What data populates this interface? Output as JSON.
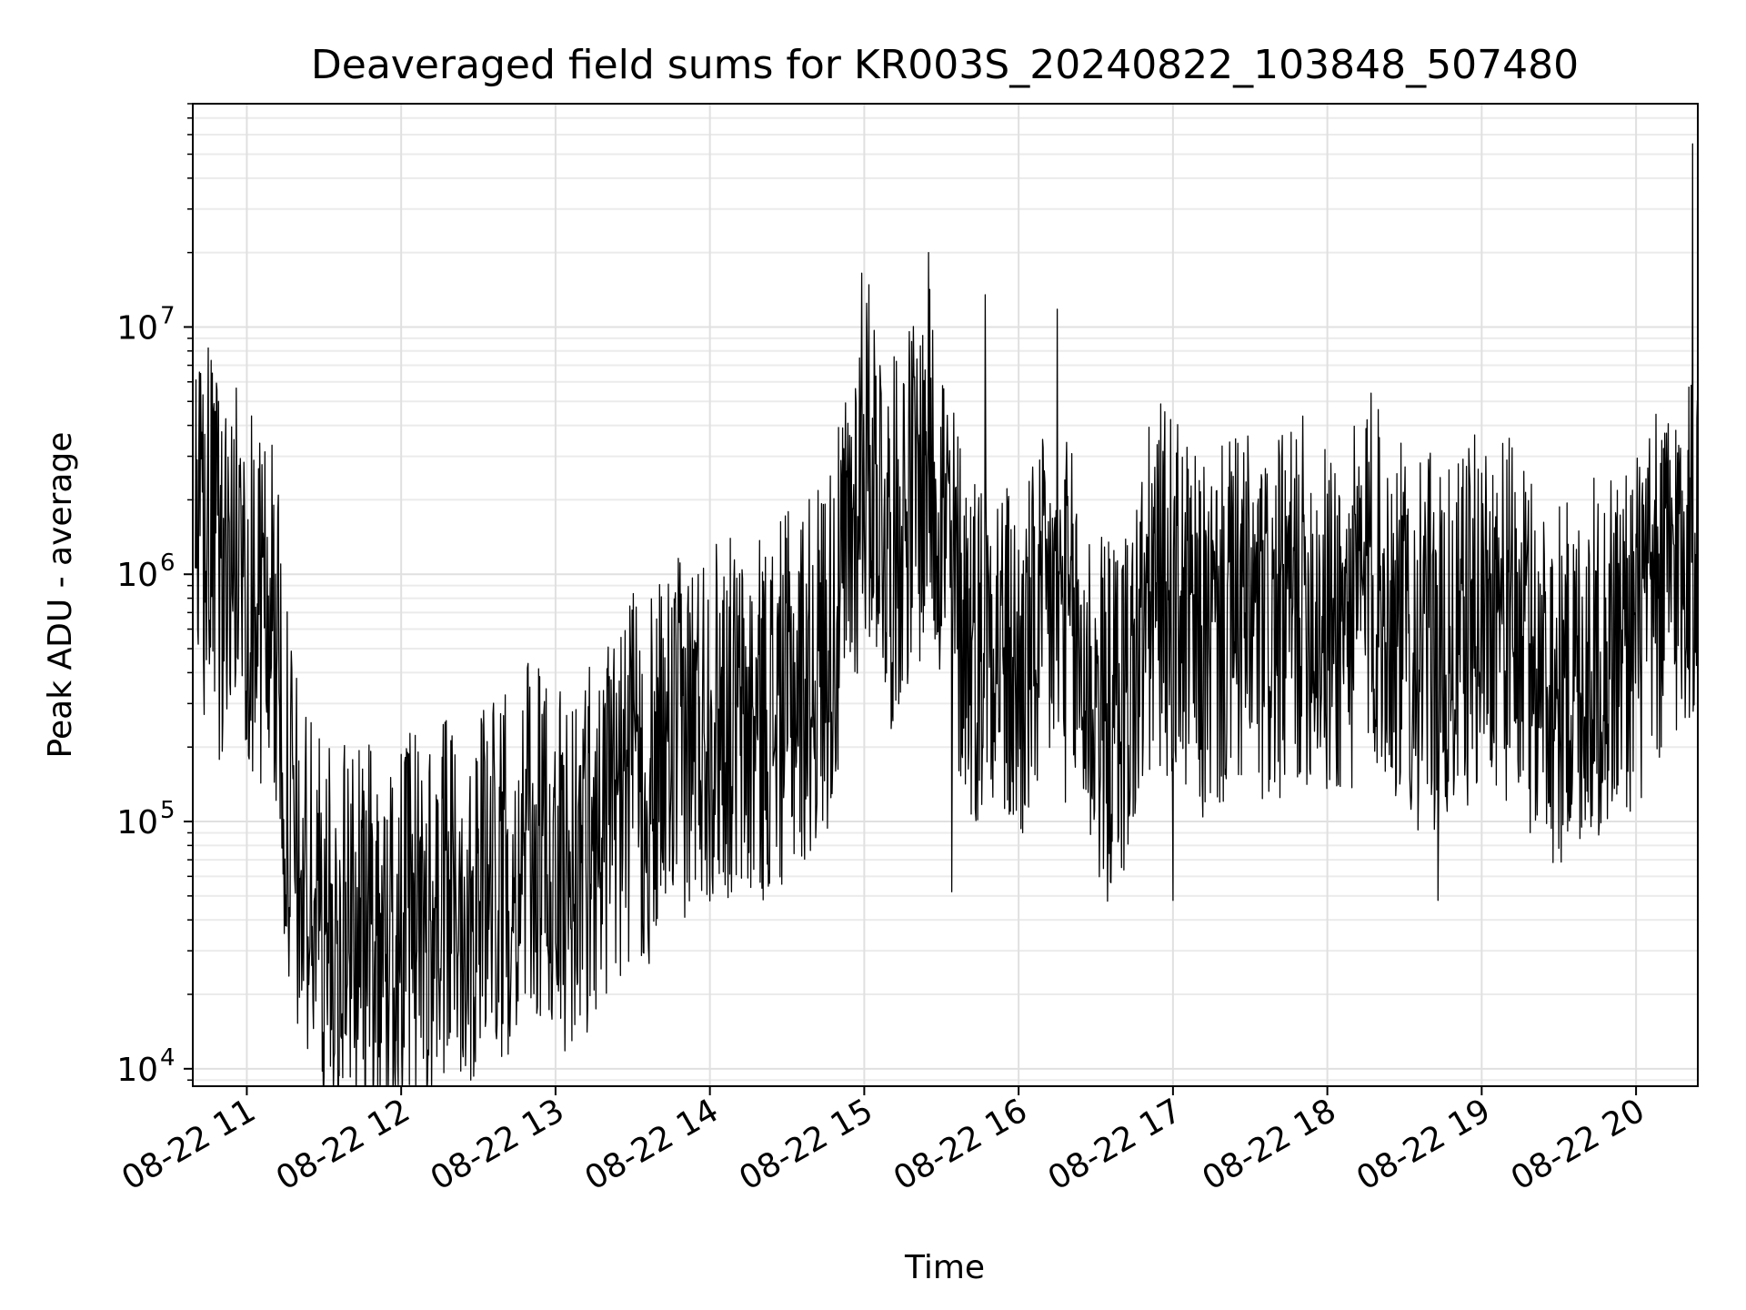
{
  "chart_data": {
    "type": "line",
    "title": "Deaveraged field sums for KR003S_20240822_103848_507480",
    "xlabel": "Time",
    "ylabel": "Peak ADU - average",
    "yscale": "log",
    "grid": true,
    "xlim": [
      "2024-08-22 10:39",
      "2024-08-22 20:24"
    ],
    "ylim": [
      8500,
      80000000
    ],
    "x_ticks": [
      {
        "value": "2024-08-22 11:00",
        "label": "08-22 11"
      },
      {
        "value": "2024-08-22 12:00",
        "label": "08-22 12"
      },
      {
        "value": "2024-08-22 13:00",
        "label": "08-22 13"
      },
      {
        "value": "2024-08-22 14:00",
        "label": "08-22 14"
      },
      {
        "value": "2024-08-22 15:00",
        "label": "08-22 15"
      },
      {
        "value": "2024-08-22 16:00",
        "label": "08-22 16"
      },
      {
        "value": "2024-08-22 17:00",
        "label": "08-22 17"
      },
      {
        "value": "2024-08-22 18:00",
        "label": "08-22 18"
      },
      {
        "value": "2024-08-22 19:00",
        "label": "08-22 19"
      },
      {
        "value": "2024-08-22 20:00",
        "label": "08-22 20"
      }
    ],
    "y_ticks": [
      {
        "value": 10000,
        "base": "10",
        "exp": "4"
      },
      {
        "value": 100000,
        "base": "10",
        "exp": "5"
      },
      {
        "value": 1000000,
        "base": "10",
        "exp": "6"
      },
      {
        "value": 10000000,
        "base": "10",
        "exp": "7"
      }
    ],
    "line_color": "#000000",
    "series": [
      {
        "x": [
          "2024-08-22 10:40",
          "2024-08-22 10:45",
          "2024-08-22 10:50",
          "2024-08-22 10:55",
          "2024-08-22 11:00",
          "2024-08-22 11:05",
          "2024-08-22 11:10",
          "2024-08-22 11:15",
          "2024-08-22 11:20",
          "2024-08-22 11:25",
          "2024-08-22 11:30",
          "2024-08-22 11:35",
          "2024-08-22 11:40",
          "2024-08-22 11:45",
          "2024-08-22 11:50",
          "2024-08-22 11:55",
          "2024-08-22 12:00",
          "2024-08-22 12:05",
          "2024-08-22 12:10",
          "2024-08-22 12:15",
          "2024-08-22 12:20",
          "2024-08-22 12:25",
          "2024-08-22 12:30",
          "2024-08-22 12:35",
          "2024-08-22 12:40",
          "2024-08-22 12:45",
          "2024-08-22 12:50",
          "2024-08-22 12:55",
          "2024-08-22 13:00",
          "2024-08-22 13:05",
          "2024-08-22 13:10",
          "2024-08-22 13:15",
          "2024-08-22 13:20",
          "2024-08-22 13:25",
          "2024-08-22 13:30",
          "2024-08-22 13:35",
          "2024-08-22 13:40",
          "2024-08-22 13:45",
          "2024-08-22 13:50",
          "2024-08-22 13:55",
          "2024-08-22 14:00",
          "2024-08-22 14:05",
          "2024-08-22 14:10",
          "2024-08-22 14:15",
          "2024-08-22 14:20",
          "2024-08-22 14:25",
          "2024-08-22 14:30",
          "2024-08-22 14:35",
          "2024-08-22 14:40",
          "2024-08-22 14:45",
          "2024-08-22 14:50",
          "2024-08-22 14:55",
          "2024-08-22 15:00",
          "2024-08-22 15:05",
          "2024-08-22 15:10",
          "2024-08-22 15:15",
          "2024-08-22 15:20",
          "2024-08-22 15:25",
          "2024-08-22 15:30",
          "2024-08-22 15:35",
          "2024-08-22 15:40",
          "2024-08-22 15:45",
          "2024-08-22 15:50",
          "2024-08-22 15:55",
          "2024-08-22 16:00",
          "2024-08-22 16:05",
          "2024-08-22 16:10",
          "2024-08-22 16:15",
          "2024-08-22 16:20",
          "2024-08-22 16:25",
          "2024-08-22 16:30",
          "2024-08-22 16:35",
          "2024-08-22 16:40",
          "2024-08-22 16:45",
          "2024-08-22 16:50",
          "2024-08-22 16:55",
          "2024-08-22 17:00",
          "2024-08-22 17:05",
          "2024-08-22 17:10",
          "2024-08-22 17:15",
          "2024-08-22 17:20",
          "2024-08-22 17:25",
          "2024-08-22 17:30",
          "2024-08-22 17:35",
          "2024-08-22 17:40",
          "2024-08-22 17:45",
          "2024-08-22 17:50",
          "2024-08-22 17:55",
          "2024-08-22 18:00",
          "2024-08-22 18:05",
          "2024-08-22 18:10",
          "2024-08-22 18:15",
          "2024-08-22 18:20",
          "2024-08-22 18:25",
          "2024-08-22 18:30",
          "2024-08-22 18:35",
          "2024-08-22 18:40",
          "2024-08-22 18:45",
          "2024-08-22 18:50",
          "2024-08-22 18:55",
          "2024-08-22 19:00",
          "2024-08-22 19:05",
          "2024-08-22 19:10",
          "2024-08-22 19:15",
          "2024-08-22 19:20",
          "2024-08-22 19:25",
          "2024-08-22 19:30",
          "2024-08-22 19:35",
          "2024-08-22 19:40",
          "2024-08-22 19:45",
          "2024-08-22 19:50",
          "2024-08-22 19:55",
          "2024-08-22 20:00",
          "2024-08-22 20:05",
          "2024-08-22 20:10",
          "2024-08-22 20:15",
          "2024-08-22 20:20"
        ],
        "y": [
          1100000,
          1500000,
          900000,
          1200000,
          1000000,
          700000,
          800000,
          150000,
          60000,
          50000,
          40000,
          30000,
          45000,
          35000,
          40000,
          30000,
          40000,
          45000,
          38000,
          42000,
          50000,
          46000,
          55000,
          65000,
          60000,
          70000,
          80000,
          75000,
          65000,
          60000,
          70000,
          90000,
          100000,
          120000,
          150000,
          130000,
          160000,
          200000,
          220000,
          250000,
          260000,
          280000,
          250000,
          220000,
          260000,
          280000,
          320000,
          350000,
          400000,
          500000,
          700000,
          1500000,
          3000000,
          2500000,
          1200000,
          1800000,
          2200000,
          2600000,
          2000000,
          900000,
          600000,
          500000,
          700000,
          450000,
          350000,
          500000,
          650000,
          800000,
          600000,
          400000,
          300000,
          250000,
          300000,
          400000,
          700000,
          900000,
          800000,
          650000,
          500000,
          550000,
          600000,
          700000,
          650000,
          550000,
          600000,
          700000,
          800000,
          750000,
          600000,
          650000,
          700000,
          900000,
          850000,
          700000,
          600000,
          500000,
          550000,
          450000,
          500000,
          650000,
          700000,
          800000,
          650000,
          550000,
          450000,
          400000,
          350000,
          380000,
          420000,
          450000,
          500000,
          550000,
          600000,
          700000,
          900000,
          1100000,
          1300000
        ],
        "spikes": [
          {
            "x": "2024-08-22 10:49",
            "y": 5000000
          },
          {
            "x": "2024-08-22 14:59",
            "y": 16500000
          },
          {
            "x": "2024-08-22 15:25",
            "y": 20000000
          },
          {
            "x": "2024-08-22 15:47",
            "y": 13500000
          },
          {
            "x": "2024-08-22 16:15",
            "y": 11800000
          },
          {
            "x": "2024-08-22 18:17",
            "y": 5400000
          },
          {
            "x": "2024-08-22 20:22",
            "y": 55000000
          }
        ],
        "dips": [
          {
            "x": "2024-08-22 11:58",
            "y": 13000
          },
          {
            "x": "2024-08-22 13:02",
            "y": 16000
          },
          {
            "x": "2024-08-22 15:34",
            "y": 52000
          },
          {
            "x": "2024-08-22 17:00",
            "y": 48000
          },
          {
            "x": "2024-08-22 18:43",
            "y": 48000
          }
        ]
      }
    ]
  }
}
